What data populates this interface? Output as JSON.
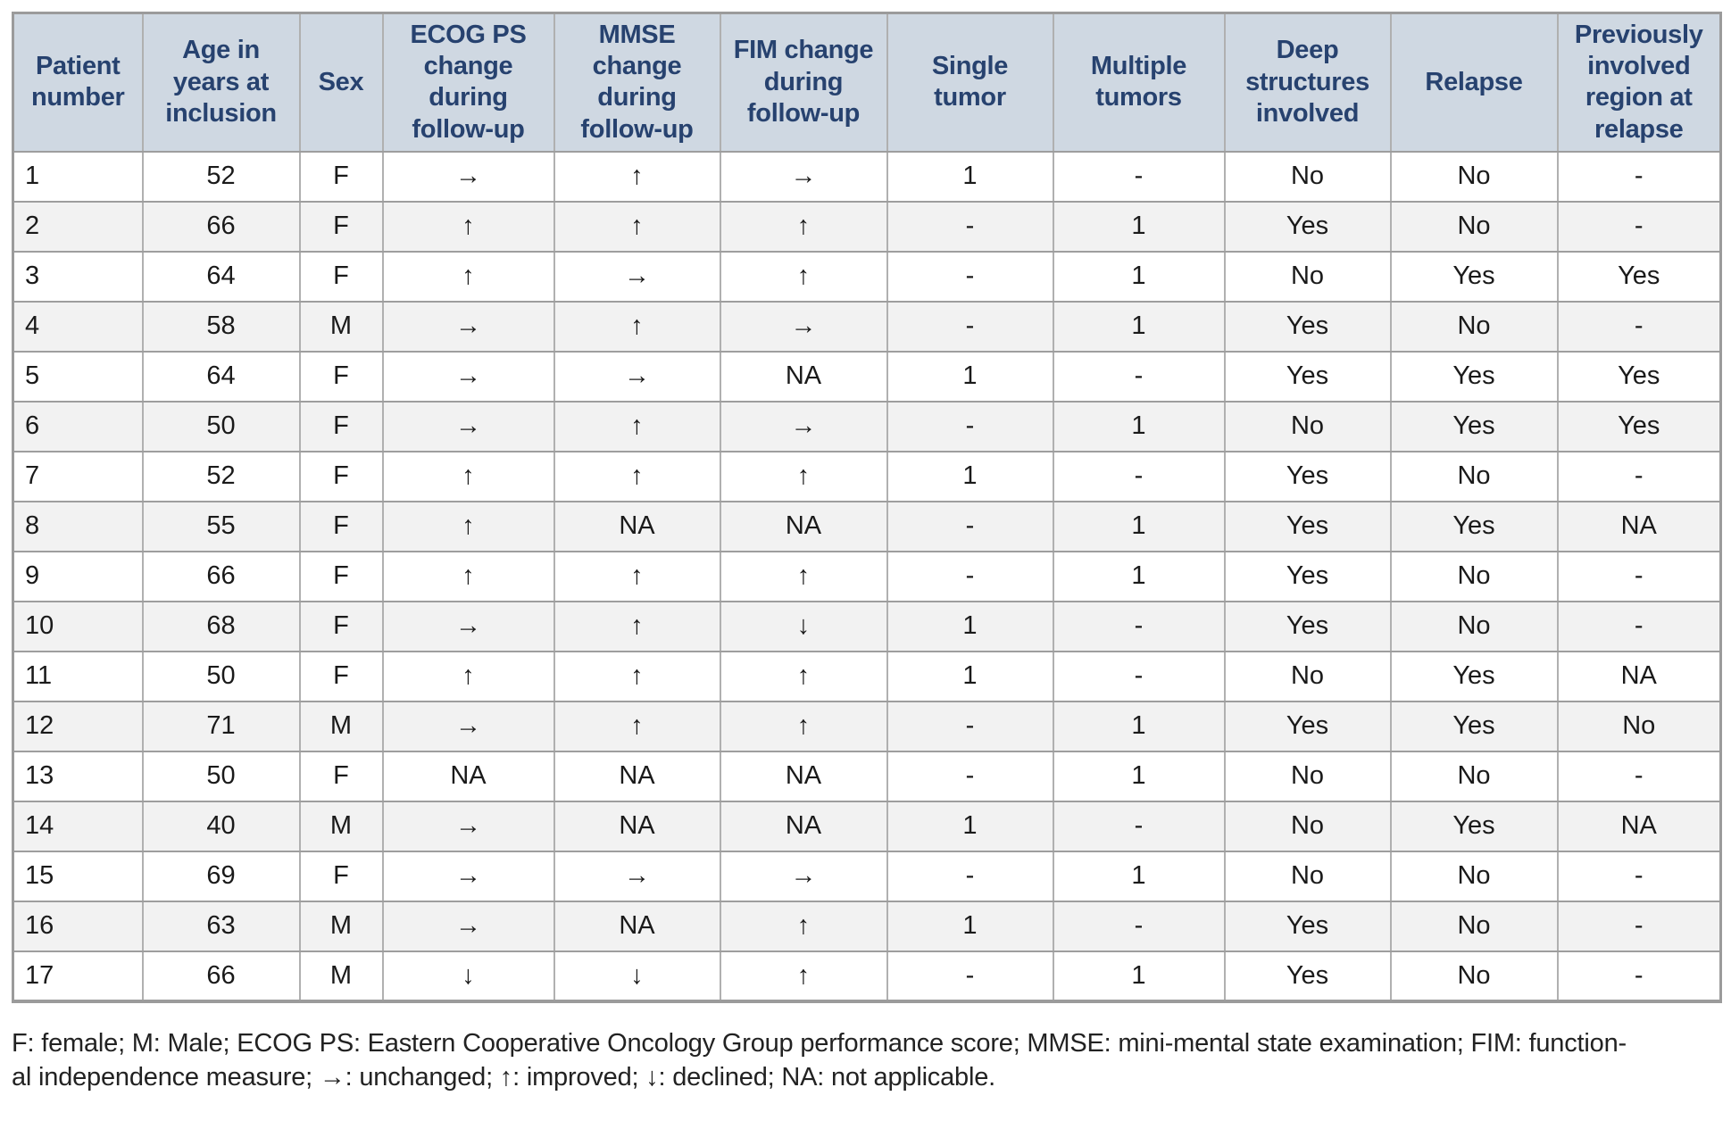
{
  "colors": {
    "header_bg": "#cfd8e2",
    "header_text": "#27426f",
    "row_alt": "#f2f2f2",
    "grid_h": "#9e9e9e",
    "grid_v": "#b0b0b0",
    "outer_border": "#9b9b9b",
    "body_text": "#1a1a1a"
  },
  "table": {
    "columns": [
      {
        "key": "patient-number",
        "label": "Patient\nnumber"
      },
      {
        "key": "age-at-inclusion",
        "label": "Age in\nyears at\ninclusion"
      },
      {
        "key": "sex",
        "label": "Sex"
      },
      {
        "key": "ecog-ps-change",
        "label": "ECOG PS\nchange\nduring\nfollow-up"
      },
      {
        "key": "mmse-change",
        "label": "MMSE\nchange\nduring\nfollow-up"
      },
      {
        "key": "fim-change",
        "label": "FIM change\nduring\nfollow-up"
      },
      {
        "key": "single-tumor",
        "label": "Single\ntumor"
      },
      {
        "key": "multiple-tumors",
        "label": "Multiple\ntumors"
      },
      {
        "key": "deep-structures-involved",
        "label": "Deep\nstructures\ninvolved"
      },
      {
        "key": "relapse",
        "label": "Relapse"
      },
      {
        "key": "previously-involved-region",
        "label": "Previously\ninvolved\nregion at\nrelapse"
      }
    ],
    "rows": [
      [
        "1",
        "52",
        "F",
        "→",
        "↑",
        "→",
        "1",
        "-",
        "No",
        "No",
        "-"
      ],
      [
        "2",
        "66",
        "F",
        "↑",
        "↑",
        "↑",
        "-",
        "1",
        "Yes",
        "No",
        "-"
      ],
      [
        "3",
        "64",
        "F",
        "↑",
        "→",
        "↑",
        "-",
        "1",
        "No",
        "Yes",
        "Yes"
      ],
      [
        "4",
        "58",
        "M",
        "→",
        "↑",
        "→",
        "-",
        "1",
        "Yes",
        "No",
        "-"
      ],
      [
        "5",
        "64",
        "F",
        "→",
        "→",
        "NA",
        "1",
        "-",
        "Yes",
        "Yes",
        "Yes"
      ],
      [
        "6",
        "50",
        "F",
        "→",
        "↑",
        "→",
        "-",
        "1",
        "No",
        "Yes",
        "Yes"
      ],
      [
        "7",
        "52",
        "F",
        "↑",
        "↑",
        "↑",
        "1",
        "-",
        "Yes",
        "No",
        "-"
      ],
      [
        "8",
        "55",
        "F",
        "↑",
        "NA",
        "NA",
        "-",
        "1",
        "Yes",
        "Yes",
        "NA"
      ],
      [
        "9",
        "66",
        "F",
        "↑",
        "↑",
        "↑",
        "-",
        "1",
        "Yes",
        "No",
        "-"
      ],
      [
        "10",
        "68",
        "F",
        "→",
        "↑",
        "↓",
        "1",
        "-",
        "Yes",
        "No",
        "-"
      ],
      [
        "11",
        "50",
        "F",
        "↑",
        "↑",
        "↑",
        "1",
        "-",
        "No",
        "Yes",
        "NA"
      ],
      [
        "12",
        "71",
        "M",
        "→",
        "↑",
        "↑",
        "-",
        "1",
        "Yes",
        "Yes",
        "No"
      ],
      [
        "13",
        "50",
        "F",
        "NA",
        "NA",
        "NA",
        "-",
        "1",
        "No",
        "No",
        "-"
      ],
      [
        "14",
        "40",
        "M",
        "→",
        "NA",
        "NA",
        "1",
        "-",
        "No",
        "Yes",
        "NA"
      ],
      [
        "15",
        "69",
        "F",
        "→",
        "→",
        "→",
        "-",
        "1",
        "No",
        "No",
        "-"
      ],
      [
        "16",
        "63",
        "M",
        "→",
        "NA",
        "↑",
        "1",
        "-",
        "Yes",
        "No",
        "-"
      ],
      [
        "17",
        "66",
        "M",
        "↓",
        "↓",
        "↑",
        "-",
        "1",
        "Yes",
        "No",
        "-"
      ]
    ]
  },
  "footnote": {
    "text": "F: female; M: Male; ECOG PS: Eastern Cooperative Oncology Group performance score; MMSE: mini-mental state examination; FIM: function-\nal independence measure; →: unchanged; ↑: improved; ↓: declined; NA: not applicable."
  }
}
